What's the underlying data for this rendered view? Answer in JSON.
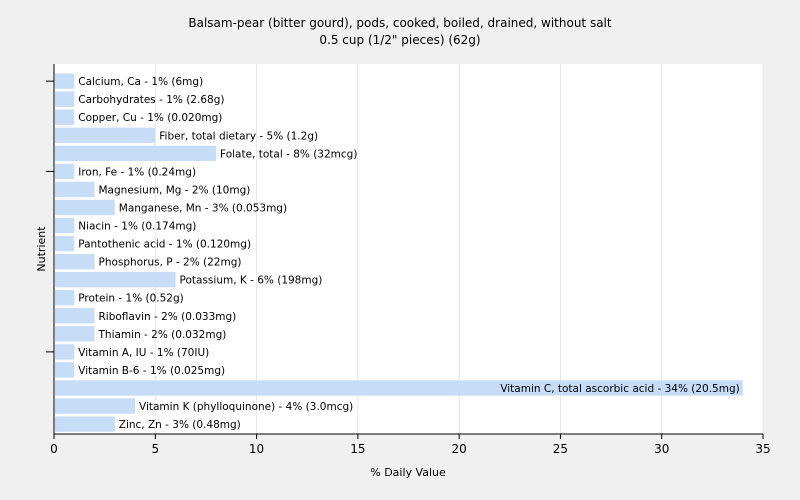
{
  "chart_data": {
    "type": "bar",
    "orientation": "horizontal",
    "title": "Balsam-pear (bitter gourd), pods, cooked, boiled, drained, without salt",
    "subtitle": "0.5 cup (1/2\" pieces) (62g)",
    "xlabel": "% Daily Value",
    "ylabel": "Nutrient",
    "xlim": [
      0,
      35
    ],
    "xticks": [
      0,
      5,
      10,
      15,
      20,
      25,
      30,
      35
    ],
    "grid": true,
    "bar_color": "#c6dcf7",
    "categories": [
      "Calcium, Ca - 1% (6mg)",
      "Carbohydrates - 1% (2.68g)",
      "Copper, Cu - 1% (0.020mg)",
      "Fiber, total dietary - 5% (1.2g)",
      "Folate, total - 8% (32mcg)",
      "Iron, Fe - 1% (0.24mg)",
      "Magnesium, Mg - 2% (10mg)",
      "Manganese, Mn - 3% (0.053mg)",
      "Niacin - 1% (0.174mg)",
      "Pantothenic acid - 1% (0.120mg)",
      "Phosphorus, P - 2% (22mg)",
      "Potassium, K - 6% (198mg)",
      "Protein - 1% (0.52g)",
      "Riboflavin - 2% (0.033mg)",
      "Thiamin - 2% (0.032mg)",
      "Vitamin A, IU - 1% (70IU)",
      "Vitamin B-6 - 1% (0.025mg)",
      "Vitamin C, total ascorbic acid - 34% (20.5mg)",
      "Vitamin K (phylloquinone) - 4% (3.0mcg)",
      "Zinc, Zn - 3% (0.48mg)"
    ],
    "values": [
      1,
      1,
      1,
      5,
      8,
      1,
      2,
      3,
      1,
      1,
      2,
      6,
      1,
      2,
      2,
      1,
      1,
      34,
      4,
      3
    ]
  }
}
